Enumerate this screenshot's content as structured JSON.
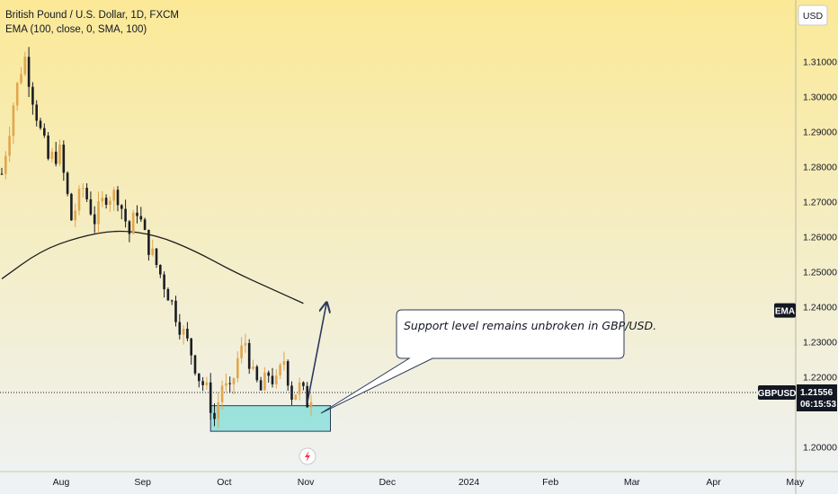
{
  "legend": {
    "title": "British Pound / U.S. Dollar, 1D, FXCM",
    "indicator": "EMA (100, close, 0, SMA, 100)"
  },
  "currency_label": "USD",
  "callout": "Support level remains unbroken in GBP/USD.",
  "ema_tag": "EMA",
  "symbol_tag": "GBPUSD",
  "last_price": "1.21556",
  "countdown": "06:15:53",
  "colors": {
    "bg_top": "#fbe997",
    "bg_bottom": "#eef2f5",
    "candle": "#1c1d24",
    "candle_accent": "#e0a64e",
    "support_box": "#7fded8",
    "price_tag": "#131722"
  },
  "chart_data": {
    "type": "candlestick",
    "symbol": "GBPUSD",
    "timeframe": "1D",
    "ylim": [
      1.193,
      1.324
    ],
    "y_ticks": [
      "1.31000",
      "1.30000",
      "1.29000",
      "1.28000",
      "1.27000",
      "1.26000",
      "1.25000",
      "1.24000",
      "1.23000",
      "1.22000",
      "1.20000"
    ],
    "x_ticks": [
      "Aug",
      "Sep",
      "Oct",
      "Nov",
      "Dec",
      "2024",
      "Feb",
      "Mar",
      "Apr",
      "May"
    ],
    "last_price": 1.21556,
    "support_zone": [
      1.2045,
      1.2118
    ],
    "close_path": [
      [
        0,
        1.278
      ],
      [
        3,
        1.298
      ],
      [
        5,
        1.308
      ],
      [
        6,
        1.311
      ],
      [
        8,
        1.3
      ],
      [
        10,
        1.29
      ],
      [
        12,
        1.282
      ],
      [
        15,
        1.284
      ],
      [
        18,
        1.265
      ],
      [
        21,
        1.274
      ],
      [
        24,
        1.265
      ],
      [
        27,
        1.272
      ],
      [
        30,
        1.272
      ],
      [
        33,
        1.261
      ],
      [
        35,
        1.268
      ],
      [
        37,
        1.26
      ],
      [
        40,
        1.252
      ],
      [
        43,
        1.244
      ],
      [
        46,
        1.235
      ],
      [
        49,
        1.227
      ],
      [
        51,
        1.22
      ],
      [
        53,
        1.216
      ],
      [
        55,
        1.208
      ],
      [
        57,
        1.218
      ],
      [
        59,
        1.215
      ],
      [
        61,
        1.225
      ],
      [
        63,
        1.23
      ],
      [
        65,
        1.22
      ],
      [
        67,
        1.216
      ],
      [
        69,
        1.221
      ],
      [
        71,
        1.218
      ],
      [
        73,
        1.225
      ],
      [
        75,
        1.215
      ],
      [
        77,
        1.217
      ],
      [
        79,
        1.213
      ],
      [
        80,
        1.215
      ]
    ],
    "ema_path": [
      [
        0,
        1.248
      ],
      [
        10,
        1.256
      ],
      [
        20,
        1.26
      ],
      [
        30,
        1.262
      ],
      [
        40,
        1.2605
      ],
      [
        50,
        1.256
      ],
      [
        60,
        1.25
      ],
      [
        70,
        1.245
      ],
      [
        78,
        1.241
      ]
    ]
  }
}
